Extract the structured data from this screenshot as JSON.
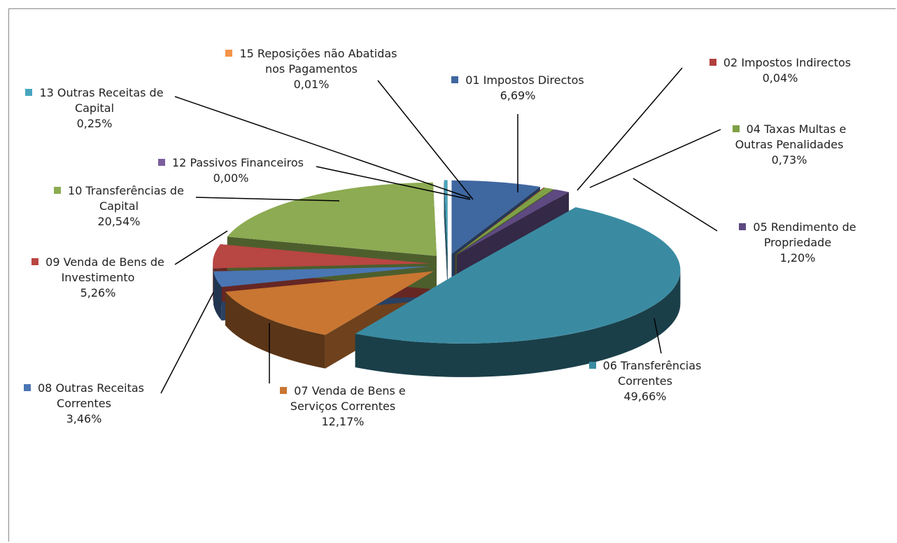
{
  "chart_data": {
    "type": "pie",
    "categories": [
      "01 Impostos Directos",
      "02 Impostos Indirectos",
      "04 Taxas Multas e Outras Penalidades",
      "05 Rendimento de Propriedade",
      "06 Transferências Correntes",
      "07 Venda de Bens e Serviços Correntes",
      "08 Outras Receitas Correntes",
      "09 Venda de Bens de Investimento",
      "10 Transferências de Capital",
      "12 Passivos Financeiros",
      "13 Outras Receitas de Capital",
      "15 Reposições não Abatidas nos Pagamentos"
    ],
    "values": [
      6.69,
      0.04,
      0.73,
      1.2,
      49.66,
      12.17,
      3.46,
      5.26,
      20.54,
      0.0,
      0.25,
      0.01
    ],
    "value_labels": [
      "6,69%",
      "0,04%",
      "0,73%",
      "1,20%",
      "49,66%",
      "12,17%",
      "3,46%",
      "5,26%",
      "20,54%",
      "0,00%",
      "0,25%",
      "0,01%"
    ],
    "colors": [
      "#3f67a0",
      "#b0403d",
      "#7fa046",
      "#5e4a80",
      "#3a8ba2",
      "#c97632",
      "#4a76b4",
      "#b84642",
      "#8cab52",
      "#7b5e9d",
      "#46a5be",
      "#f4944a"
    ]
  }
}
